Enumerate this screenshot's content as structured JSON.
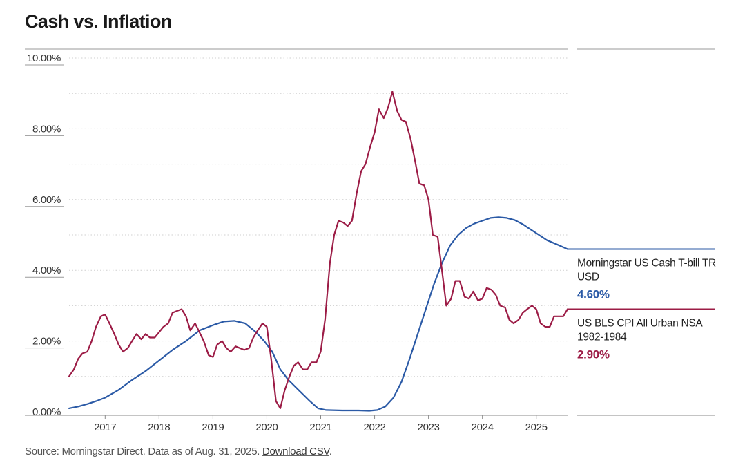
{
  "chart_data": {
    "type": "line",
    "title": "Cash vs. Inflation",
    "xlabel": "",
    "ylabel": "",
    "ylim": [
      0,
      10
    ],
    "yticks": [
      "10.00%",
      "8.00%",
      "6.00%",
      "4.00%",
      "2.00%",
      "0.00%"
    ],
    "ytick_values": [
      10,
      8,
      6,
      4,
      2,
      0
    ],
    "xlim": [
      2016.33,
      2025.58
    ],
    "xticks": [
      "2017",
      "2018",
      "2019",
      "2020",
      "2021",
      "2022",
      "2023",
      "2024",
      "2025"
    ],
    "xtick_values": [
      2017,
      2018,
      2019,
      2020,
      2021,
      2022,
      2023,
      2024,
      2025
    ],
    "grid": true,
    "series": [
      {
        "name": "Morningstar US Cash T-bill TR USD",
        "color": "#2b5aa6",
        "end_value_label": "4.60%",
        "points": [
          [
            2016.33,
            0.1
          ],
          [
            2016.5,
            0.15
          ],
          [
            2016.67,
            0.22
          ],
          [
            2016.83,
            0.3
          ],
          [
            2017.0,
            0.4
          ],
          [
            2017.25,
            0.62
          ],
          [
            2017.5,
            0.9
          ],
          [
            2017.75,
            1.15
          ],
          [
            2018.0,
            1.45
          ],
          [
            2018.25,
            1.75
          ],
          [
            2018.5,
            2.0
          ],
          [
            2018.75,
            2.3
          ],
          [
            2019.0,
            2.45
          ],
          [
            2019.2,
            2.55
          ],
          [
            2019.4,
            2.57
          ],
          [
            2019.6,
            2.5
          ],
          [
            2019.8,
            2.25
          ],
          [
            2019.95,
            2.0
          ],
          [
            2020.1,
            1.7
          ],
          [
            2020.25,
            1.2
          ],
          [
            2020.4,
            0.9
          ],
          [
            2020.6,
            0.6
          ],
          [
            2020.8,
            0.3
          ],
          [
            2020.95,
            0.1
          ],
          [
            2021.1,
            0.05
          ],
          [
            2021.4,
            0.04
          ],
          [
            2021.7,
            0.04
          ],
          [
            2021.9,
            0.03
          ],
          [
            2022.05,
            0.05
          ],
          [
            2022.2,
            0.15
          ],
          [
            2022.35,
            0.4
          ],
          [
            2022.5,
            0.85
          ],
          [
            2022.65,
            1.5
          ],
          [
            2022.8,
            2.2
          ],
          [
            2022.95,
            2.9
          ],
          [
            2023.1,
            3.6
          ],
          [
            2023.25,
            4.2
          ],
          [
            2023.4,
            4.7
          ],
          [
            2023.55,
            5.0
          ],
          [
            2023.7,
            5.2
          ],
          [
            2023.85,
            5.32
          ],
          [
            2024.0,
            5.4
          ],
          [
            2024.15,
            5.48
          ],
          [
            2024.3,
            5.5
          ],
          [
            2024.45,
            5.48
          ],
          [
            2024.6,
            5.42
          ],
          [
            2024.75,
            5.3
          ],
          [
            2024.9,
            5.15
          ],
          [
            2025.05,
            5.0
          ],
          [
            2025.2,
            4.85
          ],
          [
            2025.4,
            4.72
          ],
          [
            2025.58,
            4.6
          ]
        ]
      },
      {
        "name": "US BLS CPI All Urban NSA 1982-1984",
        "color": "#9c1c46",
        "end_value_label": "2.90%",
        "points": [
          [
            2016.33,
            1.0
          ],
          [
            2016.42,
            1.2
          ],
          [
            2016.5,
            1.5
          ],
          [
            2016.58,
            1.65
          ],
          [
            2016.67,
            1.7
          ],
          [
            2016.75,
            2.0
          ],
          [
            2016.83,
            2.4
          ],
          [
            2016.92,
            2.7
          ],
          [
            2017.0,
            2.75
          ],
          [
            2017.08,
            2.5
          ],
          [
            2017.17,
            2.2
          ],
          [
            2017.25,
            1.9
          ],
          [
            2017.33,
            1.7
          ],
          [
            2017.42,
            1.8
          ],
          [
            2017.5,
            2.0
          ],
          [
            2017.58,
            2.2
          ],
          [
            2017.67,
            2.05
          ],
          [
            2017.75,
            2.2
          ],
          [
            2017.83,
            2.1
          ],
          [
            2017.92,
            2.1
          ],
          [
            2018.0,
            2.25
          ],
          [
            2018.08,
            2.4
          ],
          [
            2018.17,
            2.5
          ],
          [
            2018.25,
            2.8
          ],
          [
            2018.33,
            2.85
          ],
          [
            2018.42,
            2.9
          ],
          [
            2018.5,
            2.7
          ],
          [
            2018.58,
            2.3
          ],
          [
            2018.67,
            2.5
          ],
          [
            2018.75,
            2.25
          ],
          [
            2018.83,
            2.0
          ],
          [
            2018.92,
            1.6
          ],
          [
            2019.0,
            1.55
          ],
          [
            2019.08,
            1.9
          ],
          [
            2019.17,
            2.0
          ],
          [
            2019.25,
            1.8
          ],
          [
            2019.33,
            1.7
          ],
          [
            2019.42,
            1.85
          ],
          [
            2019.5,
            1.8
          ],
          [
            2019.58,
            1.75
          ],
          [
            2019.67,
            1.8
          ],
          [
            2019.75,
            2.1
          ],
          [
            2019.83,
            2.3
          ],
          [
            2019.92,
            2.5
          ],
          [
            2020.0,
            2.4
          ],
          [
            2020.08,
            1.5
          ],
          [
            2020.17,
            0.3
          ],
          [
            2020.25,
            0.1
          ],
          [
            2020.33,
            0.6
          ],
          [
            2020.42,
            1.0
          ],
          [
            2020.5,
            1.3
          ],
          [
            2020.58,
            1.4
          ],
          [
            2020.67,
            1.2
          ],
          [
            2020.75,
            1.2
          ],
          [
            2020.83,
            1.4
          ],
          [
            2020.92,
            1.4
          ],
          [
            2021.0,
            1.7
          ],
          [
            2021.08,
            2.6
          ],
          [
            2021.17,
            4.2
          ],
          [
            2021.25,
            5.0
          ],
          [
            2021.33,
            5.4
          ],
          [
            2021.42,
            5.35
          ],
          [
            2021.5,
            5.25
          ],
          [
            2021.58,
            5.4
          ],
          [
            2021.67,
            6.2
          ],
          [
            2021.75,
            6.8
          ],
          [
            2021.83,
            7.0
          ],
          [
            2021.92,
            7.5
          ],
          [
            2022.0,
            7.9
          ],
          [
            2022.08,
            8.55
          ],
          [
            2022.17,
            8.3
          ],
          [
            2022.25,
            8.6
          ],
          [
            2022.33,
            9.05
          ],
          [
            2022.42,
            8.5
          ],
          [
            2022.5,
            8.25
          ],
          [
            2022.58,
            8.2
          ],
          [
            2022.67,
            7.7
          ],
          [
            2022.75,
            7.1
          ],
          [
            2022.83,
            6.45
          ],
          [
            2022.92,
            6.4
          ],
          [
            2023.0,
            6.0
          ],
          [
            2023.08,
            5.0
          ],
          [
            2023.17,
            4.95
          ],
          [
            2023.25,
            4.0
          ],
          [
            2023.33,
            3.0
          ],
          [
            2023.42,
            3.2
          ],
          [
            2023.5,
            3.7
          ],
          [
            2023.58,
            3.7
          ],
          [
            2023.67,
            3.25
          ],
          [
            2023.75,
            3.2
          ],
          [
            2023.83,
            3.4
          ],
          [
            2023.92,
            3.15
          ],
          [
            2024.0,
            3.2
          ],
          [
            2024.08,
            3.5
          ],
          [
            2024.17,
            3.45
          ],
          [
            2024.25,
            3.3
          ],
          [
            2024.33,
            3.0
          ],
          [
            2024.42,
            2.95
          ],
          [
            2024.5,
            2.6
          ],
          [
            2024.58,
            2.5
          ],
          [
            2024.67,
            2.6
          ],
          [
            2024.75,
            2.8
          ],
          [
            2024.83,
            2.9
          ],
          [
            2024.92,
            3.0
          ],
          [
            2025.0,
            2.9
          ],
          [
            2025.08,
            2.5
          ],
          [
            2025.17,
            2.4
          ],
          [
            2025.25,
            2.4
          ],
          [
            2025.33,
            2.7
          ],
          [
            2025.42,
            2.7
          ],
          [
            2025.5,
            2.7
          ],
          [
            2025.58,
            2.9
          ]
        ]
      }
    ]
  },
  "source": {
    "text": "Source: Morningstar Direct. Data as of Aug. 31, 2025.",
    "link_label": "Download CSV",
    "suffix": "."
  }
}
